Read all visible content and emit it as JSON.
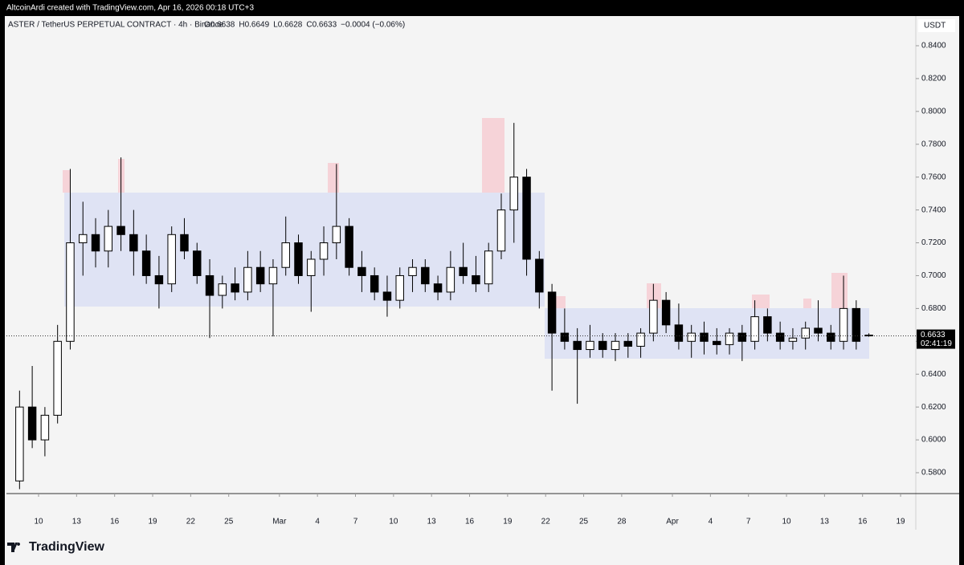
{
  "chart_data": {
    "type": "candlestick",
    "attribution": "AltcoinArdi created with TradingView.com, Apr 16, 2026 00:18 UTC+3",
    "title": "ASTER / TetherUS PERPETUAL CONTRACT · 4h · Binance",
    "ohlc_info": [
      "O0.6638",
      "H0.6649",
      "L0.6628",
      "C0.6633",
      "−0.0004 (−0.06%)"
    ],
    "currency": "USDT",
    "countdown": "02:41:19",
    "branding": "TradingView",
    "up_color": "#ffffff",
    "down_color": "#000000",
    "wick_color": "#000000",
    "grid": false,
    "candles": {
      "open": [
        0.575,
        0.62,
        0.6,
        0.615,
        0.66,
        0.72,
        0.725,
        0.715,
        0.73,
        0.725,
        0.715,
        0.7,
        0.695,
        0.725,
        0.715,
        0.7,
        0.688,
        0.695,
        0.69,
        0.705,
        0.695,
        0.705,
        0.72,
        0.7,
        0.71,
        0.72,
        0.73,
        0.705,
        0.7,
        0.69,
        0.685,
        0.7,
        0.705,
        0.695,
        0.69,
        0.705,
        0.7,
        0.695,
        0.715,
        0.74,
        0.76,
        0.71,
        0.69,
        0.665,
        0.66,
        0.655,
        0.66,
        0.655,
        0.66,
        0.657,
        0.665,
        0.685,
        0.67,
        0.66,
        0.665,
        0.66,
        0.658,
        0.665,
        0.66,
        0.675,
        0.665,
        0.66,
        0.662,
        0.668,
        0.665,
        0.66,
        0.68,
        0.6638
      ],
      "high": [
        0.63,
        0.645,
        0.62,
        0.67,
        0.765,
        0.745,
        0.735,
        0.74,
        0.772,
        0.74,
        0.725,
        0.712,
        0.73,
        0.735,
        0.72,
        0.71,
        0.7,
        0.705,
        0.715,
        0.715,
        0.71,
        0.736,
        0.725,
        0.715,
        0.73,
        0.768,
        0.735,
        0.715,
        0.705,
        0.7,
        0.705,
        0.71,
        0.71,
        0.7,
        0.715,
        0.72,
        0.712,
        0.72,
        0.75,
        0.793,
        0.765,
        0.715,
        0.695,
        0.68,
        0.668,
        0.67,
        0.665,
        0.665,
        0.665,
        0.668,
        0.695,
        0.69,
        0.683,
        0.67,
        0.672,
        0.668,
        0.668,
        0.67,
        0.685,
        0.68,
        0.672,
        0.668,
        0.672,
        0.685,
        0.67,
        0.7,
        0.685,
        0.6649
      ],
      "low": [
        0.57,
        0.595,
        0.59,
        0.61,
        0.655,
        0.7,
        0.705,
        0.705,
        0.715,
        0.7,
        0.695,
        0.68,
        0.69,
        0.71,
        0.695,
        0.662,
        0.68,
        0.685,
        0.685,
        0.69,
        0.663,
        0.7,
        0.695,
        0.678,
        0.7,
        0.71,
        0.7,
        0.69,
        0.685,
        0.675,
        0.68,
        0.69,
        0.69,
        0.685,
        0.685,
        0.695,
        0.69,
        0.69,
        0.71,
        0.72,
        0.7,
        0.68,
        0.63,
        0.655,
        0.622,
        0.65,
        0.65,
        0.648,
        0.65,
        0.65,
        0.66,
        0.665,
        0.655,
        0.65,
        0.652,
        0.652,
        0.652,
        0.648,
        0.655,
        0.66,
        0.655,
        0.655,
        0.655,
        0.66,
        0.655,
        0.655,
        0.655,
        0.6628
      ],
      "close": [
        0.62,
        0.6,
        0.615,
        0.66,
        0.72,
        0.725,
        0.715,
        0.73,
        0.725,
        0.715,
        0.7,
        0.695,
        0.725,
        0.715,
        0.7,
        0.688,
        0.695,
        0.69,
        0.705,
        0.695,
        0.705,
        0.72,
        0.7,
        0.71,
        0.72,
        0.73,
        0.705,
        0.7,
        0.69,
        0.685,
        0.7,
        0.705,
        0.695,
        0.69,
        0.705,
        0.7,
        0.695,
        0.715,
        0.74,
        0.76,
        0.71,
        0.69,
        0.665,
        0.66,
        0.655,
        0.66,
        0.655,
        0.66,
        0.657,
        0.665,
        0.685,
        0.67,
        0.66,
        0.665,
        0.66,
        0.658,
        0.665,
        0.66,
        0.675,
        0.665,
        0.66,
        0.662,
        0.668,
        0.665,
        0.66,
        0.68,
        0.66,
        0.6633
      ]
    },
    "xlim": [
      -0.535,
      71.2
    ],
    "xticks": [
      {
        "value": 2,
        "label": "10"
      },
      {
        "value": 5,
        "label": "13"
      },
      {
        "value": 8,
        "label": "16"
      },
      {
        "value": 11,
        "label": "19"
      },
      {
        "value": 14,
        "label": "22"
      },
      {
        "value": 17,
        "label": "25"
      },
      {
        "value": 21,
        "label": "Mar"
      },
      {
        "value": 24,
        "label": "4"
      },
      {
        "value": 27,
        "label": "7"
      },
      {
        "value": 30,
        "label": "10"
      },
      {
        "value": 33,
        "label": "13"
      },
      {
        "value": 36,
        "label": "16"
      },
      {
        "value": 39,
        "label": "19"
      },
      {
        "value": 42,
        "label": "22"
      },
      {
        "value": 45,
        "label": "25"
      },
      {
        "value": 48,
        "label": "28"
      },
      {
        "value": 52,
        "label": "Apr"
      },
      {
        "value": 55,
        "label": "4"
      },
      {
        "value": 58,
        "label": "7"
      },
      {
        "value": 61,
        "label": "10"
      },
      {
        "value": 64,
        "label": "13"
      },
      {
        "value": 67,
        "label": "16"
      },
      {
        "value": 70,
        "label": "19"
      }
    ],
    "ylim": [
      0.5673,
      0.8483
    ],
    "yticks": [
      {
        "value": 0.58,
        "label": "0.5800"
      },
      {
        "value": 0.6,
        "label": "0.6000"
      },
      {
        "value": 0.62,
        "label": "0.6200"
      },
      {
        "value": 0.64,
        "label": "0.6400"
      },
      {
        "value": 0.66,
        "label": "0.6600"
      },
      {
        "value": 0.68,
        "label": "0.6800"
      },
      {
        "value": 0.7,
        "label": "0.7000"
      },
      {
        "value": 0.72,
        "label": "0.7200"
      },
      {
        "value": 0.74,
        "label": "0.7400"
      },
      {
        "value": 0.76,
        "label": "0.7600"
      },
      {
        "value": 0.78,
        "label": "0.7800"
      },
      {
        "value": 0.8,
        "label": "0.8000"
      },
      {
        "value": 0.82,
        "label": "0.8200"
      },
      {
        "value": 0.84,
        "label": "0.8400"
      }
    ]
  }
}
